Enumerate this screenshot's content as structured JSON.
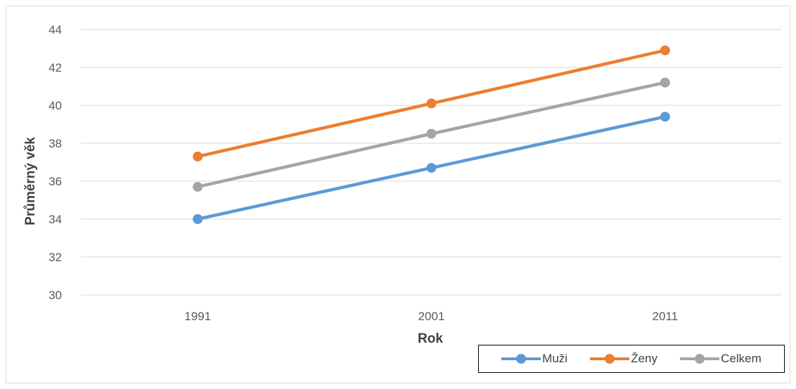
{
  "chart_data": {
    "type": "line",
    "title": "",
    "xlabel": "Rok",
    "ylabel": "Průměrný věk",
    "categories": [
      "1991",
      "2001",
      "2011"
    ],
    "ylim": [
      30,
      44
    ],
    "yticks": [
      "30",
      "32",
      "34",
      "36",
      "38",
      "40",
      "42",
      "44"
    ],
    "grid": true,
    "legend_position": "bottom-right",
    "series": [
      {
        "name": "Muži",
        "color": "#5b9bd5",
        "values": [
          34.0,
          36.7,
          39.4
        ]
      },
      {
        "name": "Ženy",
        "color": "#ed7d31",
        "values": [
          37.3,
          40.1,
          42.9
        ]
      },
      {
        "name": "Celkem",
        "color": "#a5a5a5",
        "values": [
          35.7,
          38.5,
          41.2
        ]
      }
    ]
  }
}
